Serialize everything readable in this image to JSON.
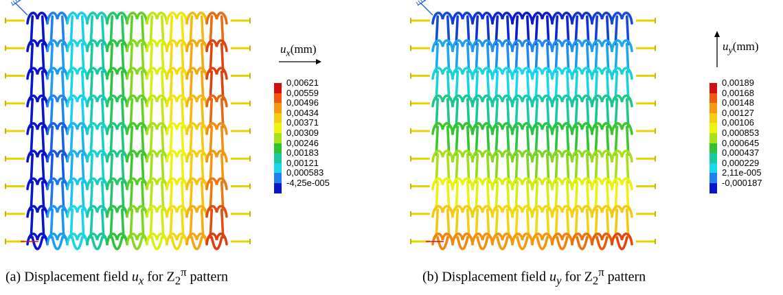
{
  "panel_a": {
    "caption": {
      "label": "(a)",
      "before": "Displacement field ",
      "var": "u",
      "sub": "x",
      "mid": " for Z",
      "pat_sub": "2",
      "pat_sup": "π",
      "after": " pattern"
    },
    "axis_label": {
      "var": "u",
      "sub": "x",
      "unit": "(mm)",
      "arrow": "right"
    },
    "legend": {
      "values": [
        "0,00621",
        "0,00559",
        "0,00496",
        "0,00434",
        "0,00371",
        "0,00309",
        "0,00246",
        "0,00183",
        "0,00121",
        "0,000583",
        "-4,25e-005"
      ],
      "colors": [
        "#d01010",
        "#f05a10",
        "#f59a10",
        "#f5ce10",
        "#eef410",
        "#a8e01a",
        "#2fc42f",
        "#18c8a0",
        "#18d8f0",
        "#2080f0",
        "#0a14c8"
      ]
    },
    "field": "x"
  },
  "panel_b": {
    "caption": {
      "label": "(b)",
      "before": "Displacement field ",
      "var": "u",
      "sub": "y",
      "mid": " for Z",
      "pat_sub": "2",
      "pat_sup": "π",
      "after": " pattern"
    },
    "axis_label": {
      "var": "u",
      "sub": "y",
      "unit": "(mm)",
      "arrow": "up"
    },
    "legend": {
      "values": [
        "0,00189",
        "0,00168",
        "0,00148",
        "0,00127",
        "0,00106",
        "0,000853",
        "0,000645",
        "0,000437",
        "0,000229",
        "2,11e-005",
        "-0,000187"
      ],
      "colors": [
        "#d01010",
        "#f05a10",
        "#f59a10",
        "#f5ce10",
        "#eef410",
        "#a8e01a",
        "#2fc42f",
        "#18c8a0",
        "#18d8f0",
        "#2080f0",
        "#0a14c8"
      ]
    },
    "field": "y"
  },
  "mesh": {
    "columns": 10,
    "rows": 8
  }
}
